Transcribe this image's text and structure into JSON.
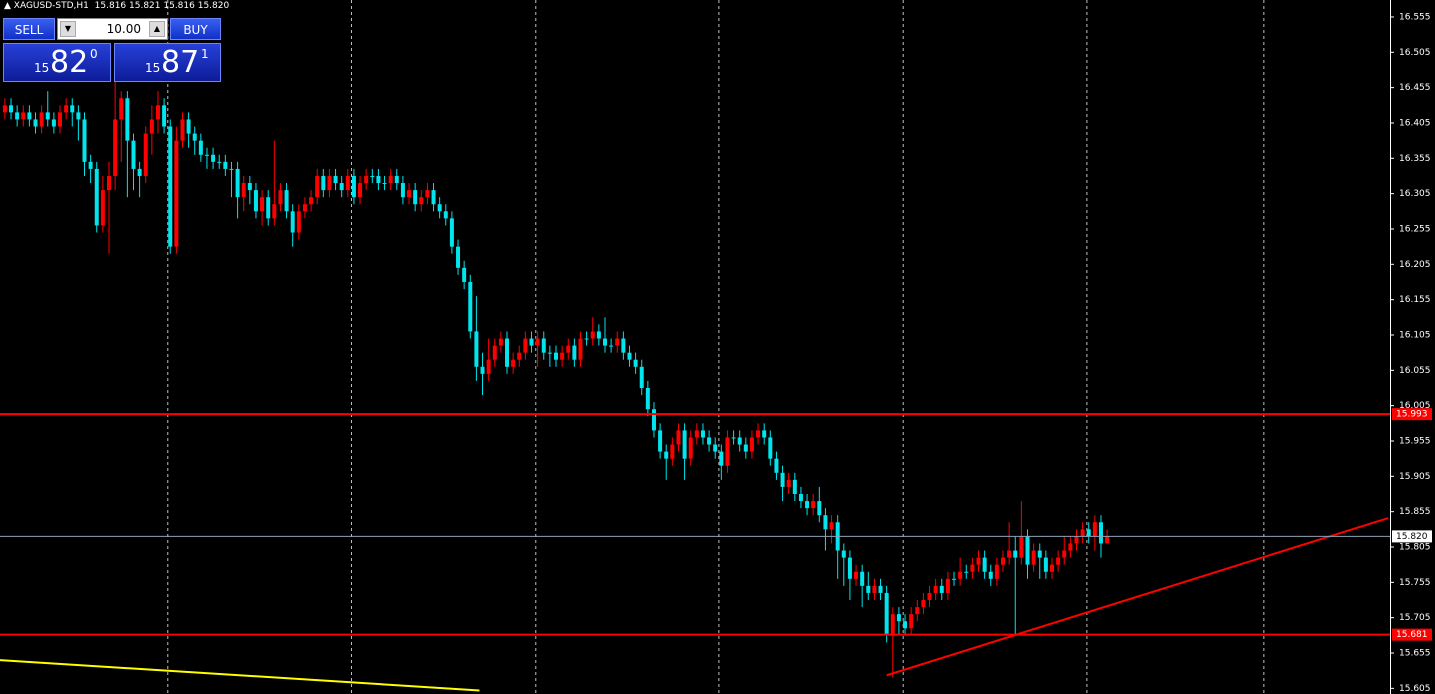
{
  "header": {
    "symbol": "XAGUSD-STD,H1",
    "ohlc": "15.816 15.821 15.816 15.820"
  },
  "trade_panel": {
    "sell": "SELL",
    "buy": "BUY",
    "volume": "10.00",
    "sell_price": {
      "big": "15",
      "main": "82",
      "small": "0"
    },
    "buy_price": {
      "big": "15",
      "main": "87",
      "small": "1"
    }
  },
  "chart_data": {
    "type": "candlestick",
    "up_color": "#ff0000",
    "down_color": "#00e5ee",
    "ylim": [
      15.597,
      16.579
    ],
    "xlim": [
      -0.8,
      226.2
    ],
    "yticks": [
      16.555,
      16.505,
      16.455,
      16.405,
      16.355,
      16.305,
      16.255,
      16.205,
      16.155,
      16.105,
      16.055,
      16.005,
      15.955,
      15.905,
      15.855,
      15.805,
      15.755,
      15.705,
      15.655,
      15.605
    ],
    "xticks": [
      26.6,
      56.6,
      86.7,
      116.6,
      146.7,
      176.7,
      205.6
    ],
    "grid": true,
    "levels": [
      {
        "value": 15.993,
        "label": "15.993",
        "color": "#ff0000"
      },
      {
        "value": 15.681,
        "label": "15.681",
        "color": "#ff0000"
      }
    ],
    "price_line": {
      "value": 15.82,
      "label": "15.820",
      "color": "#8fa3b8"
    },
    "trendlines": [
      {
        "x": [
          144.0,
          225.9
        ],
        "y": [
          15.6235,
          15.846
        ],
        "color": "#ff0000"
      },
      {
        "x": [
          -0.8,
          77.5
        ],
        "y": [
          15.645,
          15.602
        ],
        "color": "#ffff00"
      }
    ],
    "candles": [
      [
        16.42,
        16.44,
        16.41,
        16.43
      ],
      [
        16.43,
        16.44,
        16.41,
        16.42
      ],
      [
        16.42,
        16.43,
        16.4,
        16.41
      ],
      [
        16.41,
        16.43,
        16.4,
        16.42
      ],
      [
        16.42,
        16.43,
        16.4,
        16.41
      ],
      [
        16.41,
        16.42,
        16.39,
        16.4
      ],
      [
        16.4,
        16.43,
        16.39,
        16.42
      ],
      [
        16.42,
        16.45,
        16.4,
        16.41
      ],
      [
        16.41,
        16.42,
        16.39,
        16.4
      ],
      [
        16.4,
        16.43,
        16.39,
        16.42
      ],
      [
        16.42,
        16.44,
        16.41,
        16.43
      ],
      [
        16.43,
        16.44,
        16.4,
        16.42
      ],
      [
        16.42,
        16.43,
        16.38,
        16.41
      ],
      [
        16.41,
        16.42,
        16.33,
        16.35
      ],
      [
        16.35,
        16.36,
        16.32,
        16.34
      ],
      [
        16.34,
        16.35,
        16.25,
        16.26
      ],
      [
        16.26,
        16.33,
        16.25,
        16.31
      ],
      [
        16.31,
        16.35,
        16.22,
        16.33
      ],
      [
        16.33,
        16.47,
        16.31,
        16.41
      ],
      [
        16.41,
        16.45,
        16.35,
        16.44
      ],
      [
        16.44,
        16.45,
        16.3,
        16.38
      ],
      [
        16.38,
        16.39,
        16.31,
        16.34
      ],
      [
        16.34,
        16.35,
        16.3,
        16.33
      ],
      [
        16.33,
        16.4,
        16.32,
        16.39
      ],
      [
        16.39,
        16.43,
        16.36,
        16.41
      ],
      [
        16.41,
        16.45,
        16.39,
        16.43
      ],
      [
        16.43,
        16.44,
        16.39,
        16.4
      ],
      [
        16.4,
        16.41,
        16.22,
        16.23
      ],
      [
        16.23,
        16.4,
        16.22,
        16.38
      ],
      [
        16.38,
        16.42,
        16.37,
        16.41
      ],
      [
        16.41,
        16.42,
        16.37,
        16.39
      ],
      [
        16.39,
        16.4,
        16.36,
        16.38
      ],
      [
        16.38,
        16.39,
        16.35,
        16.36
      ],
      [
        16.36,
        16.37,
        16.34,
        16.36
      ],
      [
        16.36,
        16.37,
        16.34,
        16.35
      ],
      [
        16.35,
        16.36,
        16.34,
        16.35
      ],
      [
        16.35,
        16.36,
        16.33,
        16.34
      ],
      [
        16.34,
        16.35,
        16.3,
        16.34
      ],
      [
        16.34,
        16.35,
        16.27,
        16.3
      ],
      [
        16.3,
        16.33,
        16.28,
        16.32
      ],
      [
        16.32,
        16.33,
        16.29,
        16.31
      ],
      [
        16.31,
        16.32,
        16.27,
        16.28
      ],
      [
        16.28,
        16.31,
        16.26,
        16.3
      ],
      [
        16.3,
        16.31,
        16.26,
        16.27
      ],
      [
        16.27,
        16.38,
        16.26,
        16.29
      ],
      [
        16.29,
        16.32,
        16.28,
        16.31
      ],
      [
        16.31,
        16.32,
        16.27,
        16.28
      ],
      [
        16.28,
        16.29,
        16.23,
        16.25
      ],
      [
        16.25,
        16.29,
        16.24,
        16.28
      ],
      [
        16.28,
        16.3,
        16.27,
        16.29
      ],
      [
        16.29,
        16.31,
        16.28,
        16.3
      ],
      [
        16.3,
        16.34,
        16.29,
        16.33
      ],
      [
        16.33,
        16.34,
        16.3,
        16.31
      ],
      [
        16.31,
        16.34,
        16.3,
        16.33
      ],
      [
        16.33,
        16.34,
        16.31,
        16.32
      ],
      [
        16.32,
        16.33,
        16.3,
        16.31
      ],
      [
        16.31,
        16.34,
        16.3,
        16.33
      ],
      [
        16.33,
        16.34,
        16.29,
        16.3
      ],
      [
        16.3,
        16.33,
        16.29,
        16.32
      ],
      [
        16.32,
        16.34,
        16.31,
        16.33
      ],
      [
        16.33,
        16.34,
        16.32,
        16.33
      ],
      [
        16.33,
        16.34,
        16.31,
        16.32
      ],
      [
        16.32,
        16.33,
        16.31,
        16.32
      ],
      [
        16.32,
        16.34,
        16.31,
        16.33
      ],
      [
        16.33,
        16.34,
        16.31,
        16.32
      ],
      [
        16.32,
        16.33,
        16.29,
        16.3
      ],
      [
        16.3,
        16.32,
        16.29,
        16.31
      ],
      [
        16.31,
        16.32,
        16.28,
        16.29
      ],
      [
        16.29,
        16.31,
        16.28,
        16.3
      ],
      [
        16.3,
        16.32,
        16.29,
        16.31
      ],
      [
        16.31,
        16.32,
        16.28,
        16.29
      ],
      [
        16.29,
        16.3,
        16.27,
        16.28
      ],
      [
        16.28,
        16.29,
        16.26,
        16.27
      ],
      [
        16.27,
        16.28,
        16.22,
        16.23
      ],
      [
        16.23,
        16.24,
        16.19,
        16.2
      ],
      [
        16.2,
        16.21,
        16.17,
        16.18
      ],
      [
        16.18,
        16.19,
        16.1,
        16.11
      ],
      [
        16.11,
        16.16,
        16.04,
        16.06
      ],
      [
        16.06,
        16.08,
        16.02,
        16.05
      ],
      [
        16.05,
        16.1,
        16.04,
        16.07
      ],
      [
        16.07,
        16.1,
        16.06,
        16.09
      ],
      [
        16.09,
        16.11,
        16.08,
        16.1
      ],
      [
        16.1,
        16.11,
        16.05,
        16.06
      ],
      [
        16.06,
        16.08,
        16.05,
        16.07
      ],
      [
        16.07,
        16.09,
        16.06,
        16.08
      ],
      [
        16.08,
        16.11,
        16.07,
        16.1
      ],
      [
        16.1,
        16.11,
        16.08,
        16.09
      ],
      [
        16.09,
        16.11,
        16.06,
        16.1
      ],
      [
        16.1,
        16.11,
        16.07,
        16.08
      ],
      [
        16.08,
        16.09,
        16.06,
        16.08
      ],
      [
        16.08,
        16.09,
        16.06,
        16.07
      ],
      [
        16.07,
        16.09,
        16.06,
        16.08
      ],
      [
        16.08,
        16.1,
        16.07,
        16.09
      ],
      [
        16.09,
        16.1,
        16.06,
        16.07
      ],
      [
        16.07,
        16.11,
        16.06,
        16.1
      ],
      [
        16.1,
        16.11,
        16.09,
        16.1
      ],
      [
        16.1,
        16.13,
        16.09,
        16.11
      ],
      [
        16.11,
        16.12,
        16.09,
        16.1
      ],
      [
        16.1,
        16.13,
        16.08,
        16.09
      ],
      [
        16.09,
        16.1,
        16.08,
        16.09
      ],
      [
        16.09,
        16.11,
        16.08,
        16.1
      ],
      [
        16.1,
        16.11,
        16.07,
        16.08
      ],
      [
        16.08,
        16.09,
        16.06,
        16.07
      ],
      [
        16.07,
        16.08,
        16.05,
        16.06
      ],
      [
        16.06,
        16.07,
        16.02,
        16.03
      ],
      [
        16.03,
        16.04,
        15.99,
        16.0
      ],
      [
        16.0,
        16.01,
        15.96,
        15.97
      ],
      [
        15.97,
        15.98,
        15.93,
        15.94
      ],
      [
        15.94,
        15.95,
        15.9,
        15.93
      ],
      [
        15.93,
        15.96,
        15.92,
        15.95
      ],
      [
        15.95,
        15.98,
        15.94,
        15.97
      ],
      [
        15.97,
        15.98,
        15.9,
        15.93
      ],
      [
        15.93,
        15.97,
        15.92,
        15.96
      ],
      [
        15.96,
        15.98,
        15.95,
        15.97
      ],
      [
        15.97,
        15.98,
        15.95,
        15.96
      ],
      [
        15.96,
        15.97,
        15.94,
        15.95
      ],
      [
        15.95,
        15.96,
        15.93,
        15.94
      ],
      [
        15.94,
        15.95,
        15.9,
        15.92
      ],
      [
        15.92,
        15.97,
        15.91,
        15.96
      ],
      [
        15.96,
        15.97,
        15.95,
        15.96
      ],
      [
        15.96,
        15.97,
        15.94,
        15.95
      ],
      [
        15.95,
        15.96,
        15.93,
        15.94
      ],
      [
        15.94,
        15.97,
        15.93,
        15.96
      ],
      [
        15.96,
        15.98,
        15.95,
        15.97
      ],
      [
        15.97,
        15.98,
        15.95,
        15.96
      ],
      [
        15.96,
        15.97,
        15.92,
        15.93
      ],
      [
        15.93,
        15.94,
        15.9,
        15.91
      ],
      [
        15.91,
        15.92,
        15.87,
        15.89
      ],
      [
        15.89,
        15.91,
        15.88,
        15.9
      ],
      [
        15.9,
        15.91,
        15.87,
        15.88
      ],
      [
        15.88,
        15.89,
        15.86,
        15.87
      ],
      [
        15.87,
        15.88,
        15.85,
        15.86
      ],
      [
        15.86,
        15.88,
        15.85,
        15.87
      ],
      [
        15.87,
        15.89,
        15.84,
        15.85
      ],
      [
        15.85,
        15.86,
        15.8,
        15.83
      ],
      [
        15.83,
        15.85,
        15.81,
        15.84
      ],
      [
        15.84,
        15.85,
        15.76,
        15.8
      ],
      [
        15.8,
        15.81,
        15.75,
        15.79
      ],
      [
        15.79,
        15.8,
        15.73,
        15.76
      ],
      [
        15.76,
        15.78,
        15.75,
        15.77
      ],
      [
        15.77,
        15.78,
        15.72,
        15.75
      ],
      [
        15.75,
        15.77,
        15.73,
        15.74
      ],
      [
        15.74,
        15.76,
        15.73,
        15.75
      ],
      [
        15.75,
        15.76,
        15.73,
        15.74
      ],
      [
        15.74,
        15.75,
        15.67,
        15.68
      ],
      [
        15.68,
        15.72,
        15.62,
        15.71
      ],
      [
        15.71,
        15.72,
        15.68,
        15.7
      ],
      [
        15.7,
        15.71,
        15.68,
        15.69
      ],
      [
        15.69,
        15.72,
        15.68,
        15.71
      ],
      [
        15.71,
        15.73,
        15.7,
        15.72
      ],
      [
        15.72,
        15.74,
        15.71,
        15.73
      ],
      [
        15.73,
        15.75,
        15.72,
        15.74
      ],
      [
        15.74,
        15.76,
        15.73,
        15.75
      ],
      [
        15.75,
        15.76,
        15.73,
        15.74
      ],
      [
        15.74,
        15.77,
        15.73,
        15.76
      ],
      [
        15.76,
        15.77,
        15.75,
        15.76
      ],
      [
        15.76,
        15.79,
        15.75,
        15.77
      ],
      [
        15.77,
        15.78,
        15.76,
        15.77
      ],
      [
        15.77,
        15.79,
        15.76,
        15.78
      ],
      [
        15.78,
        15.8,
        15.77,
        15.79
      ],
      [
        15.79,
        15.8,
        15.76,
        15.77
      ],
      [
        15.77,
        15.78,
        15.75,
        15.76
      ],
      [
        15.76,
        15.79,
        15.75,
        15.78
      ],
      [
        15.78,
        15.8,
        15.77,
        15.79
      ],
      [
        15.79,
        15.84,
        15.78,
        15.8
      ],
      [
        15.8,
        15.82,
        15.68,
        15.79
      ],
      [
        15.79,
        15.87,
        15.78,
        15.82
      ],
      [
        15.82,
        15.83,
        15.76,
        15.78
      ],
      [
        15.78,
        15.81,
        15.77,
        15.8
      ],
      [
        15.8,
        15.81,
        15.76,
        15.79
      ],
      [
        15.79,
        15.8,
        15.76,
        15.77
      ],
      [
        15.77,
        15.79,
        15.76,
        15.78
      ],
      [
        15.78,
        15.8,
        15.77,
        15.79
      ],
      [
        15.79,
        15.82,
        15.78,
        15.8
      ],
      [
        15.8,
        15.82,
        15.79,
        15.81
      ],
      [
        15.81,
        15.83,
        15.8,
        15.82
      ],
      [
        15.82,
        15.84,
        15.81,
        15.83
      ],
      [
        15.83,
        15.84,
        15.81,
        15.82
      ],
      [
        15.82,
        15.85,
        15.8,
        15.84
      ],
      [
        15.84,
        15.85,
        15.79,
        15.81
      ],
      [
        15.81,
        15.83,
        15.81,
        15.82
      ]
    ]
  }
}
